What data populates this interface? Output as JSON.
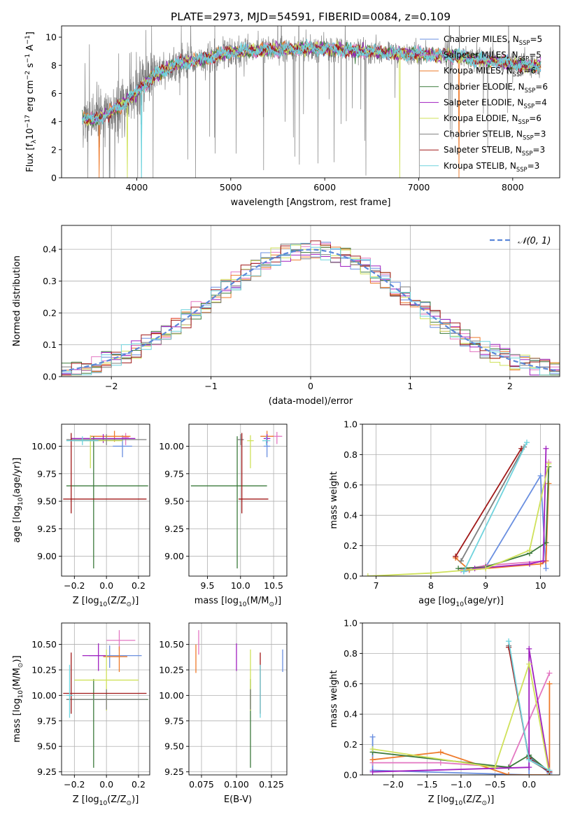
{
  "figure_title": "PLATE=2973, MJD=54591, FIBERID=0084, z=0.109",
  "colors": {
    "Chabrier MILES": "#6a8fe0",
    "Salpeter MILES": "#e377c2",
    "Kroupa MILES": "#ee7a2a",
    "Chabrier ELODIE": "#3c7a3c",
    "Salpeter ELODIE": "#a020c0",
    "Kroupa ELODIE": "#cfe15a",
    "Chabrier STELIB": "#7f7f7f",
    "Salpeter STELIB": "#a01818",
    "Kroupa STELIB": "#6fd3dd"
  },
  "chart_data": [
    {
      "id": "spectrum",
      "type": "line",
      "xlabel": "wavelength [Angstrom, rest frame]",
      "ylabel": "Flux [f$_\\lambda$10$^{-17}$ erg cm$^{-2}$ s$^{-1}$ A$^{-1}$]",
      "xlim": [
        3200,
        8500
      ],
      "ylim": [
        0,
        10.8
      ],
      "xticks": [
        4000,
        5000,
        6000,
        7000,
        8000
      ],
      "yticks": [
        0,
        2,
        4,
        6,
        8,
        10
      ],
      "legend_position": "right",
      "legend": [
        {
          "name": "Chabrier MILES",
          "n_ssp": "5"
        },
        {
          "name": "Salpeter MILES",
          "n_ssp": "5"
        },
        {
          "name": "Kroupa MILES",
          "n_ssp": "6"
        },
        {
          "name": "Chabrier ELODIE",
          "n_ssp": "6"
        },
        {
          "name": "Salpeter ELODIE",
          "n_ssp": "4"
        },
        {
          "name": "Kroupa ELODIE",
          "n_ssp": "6"
        },
        {
          "name": "Chabrier STELIB",
          "n_ssp": "3"
        },
        {
          "name": "Salpeter STELIB",
          "n_ssp": "3"
        },
        {
          "name": "Kroupa STELIB",
          "n_ssp": "3"
        }
      ],
      "continuum": {
        "x": [
          3420,
          3550,
          3700,
          3850,
          4000,
          4200,
          4400,
          4600,
          4800,
          5000,
          5200,
          5400,
          5600,
          5800,
          6000,
          6200,
          6400,
          6600,
          6800,
          7000,
          7200,
          7400,
          7600,
          7800,
          8000,
          8200,
          8300
        ],
        "y": [
          4.2,
          4.1,
          4.6,
          5.2,
          6.1,
          7.3,
          8.0,
          8.3,
          8.6,
          8.9,
          9.0,
          9.1,
          9.1,
          9.2,
          9.2,
          9.1,
          9.0,
          8.9,
          8.85,
          8.8,
          8.7,
          8.7,
          8.4,
          8.3,
          8.1,
          7.9,
          8.0
        ]
      },
      "model_drops": [
        {
          "model": "Kroupa MILES",
          "x": 3600
        },
        {
          "model": "Kroupa ELODIE",
          "x": 3900
        },
        {
          "model": "Kroupa STELIB",
          "x": 4050
        },
        {
          "model": "Kroupa ELODIE",
          "x": 6800
        },
        {
          "model": "Kroupa MILES",
          "x": 7430
        }
      ]
    },
    {
      "id": "residual-histogram",
      "type": "histogram",
      "xlabel": "(data-model)/error",
      "ylabel": "Normed distribution",
      "xlim": [
        -2.5,
        2.5
      ],
      "ylim": [
        0,
        0.475
      ],
      "xticks": [
        -2,
        -1,
        0,
        1,
        2
      ],
      "yticks": [
        0.0,
        0.1,
        0.2,
        0.3,
        0.4
      ],
      "grid": true,
      "legend": [
        "$\\mathcal{N}(0,1)$"
      ],
      "legend_position": "top-right",
      "bin_width": 0.1,
      "reference_curve": "normal(0,1)"
    },
    {
      "id": "age-vs-metallicity",
      "type": "errorbar",
      "xlabel": "Z [log$_{10}$(Z/Z$_\\odot$)]",
      "ylabel": "age  [log$_{10}$(age/yr)]",
      "xlim": [
        -0.28,
        0.27
      ],
      "ylim": [
        8.82,
        10.2
      ],
      "xticks": [
        -0.2,
        0.0,
        0.2
      ],
      "yticks": [
        9.0,
        9.25,
        9.5,
        9.75,
        10.0
      ],
      "grid": true,
      "points": [
        {
          "model": "Chabrier MILES",
          "x": 0.1,
          "y": 10.0,
          "xerr": [
            0.06,
            0.06
          ],
          "yerr": [
            0.1,
            0.1
          ]
        },
        {
          "model": "Salpeter MILES",
          "x": 0.12,
          "y": 10.08,
          "xerr": [
            0.02,
            0.02
          ],
          "yerr": [
            0.07,
            0.04
          ]
        },
        {
          "model": "Kroupa MILES",
          "x": 0.05,
          "y": 10.09,
          "xerr": [
            0.15,
            0.1
          ],
          "yerr": [
            0.05,
            0.05
          ]
        },
        {
          "model": "Chabrier ELODIE",
          "x": -0.08,
          "y": 9.64,
          "xerr": [
            0.17,
            0.34
          ],
          "yerr": [
            0.75,
            0.45
          ]
        },
        {
          "model": "Salpeter ELODIE",
          "x": -0.02,
          "y": 10.07,
          "xerr": [
            0.2,
            0.2
          ],
          "yerr": [
            0.04,
            0.04
          ]
        },
        {
          "model": "Kroupa ELODIE",
          "x": -0.1,
          "y": 10.05,
          "xerr": [
            0.1,
            0.2
          ],
          "yerr": [
            0.25,
            0.05
          ]
        },
        {
          "model": "Chabrier STELIB",
          "x": 0.0,
          "y": 10.06,
          "xerr": [
            0.25,
            0.25
          ],
          "yerr": [
            0.05,
            0.05
          ]
        },
        {
          "model": "Salpeter STELIB",
          "x": -0.22,
          "y": 9.52,
          "xerr": [
            0.05,
            0.47
          ],
          "yerr": [
            0.13,
            0.6
          ]
        },
        {
          "model": "Kroupa STELIB",
          "x": -0.15,
          "y": 10.05,
          "xerr": [
            0.1,
            0.1
          ],
          "yerr": [
            0.04,
            0.04
          ]
        }
      ]
    },
    {
      "id": "age-vs-mass",
      "type": "errorbar",
      "xlabel": "mass [log$_{10}$(M/M$_\\odot$)]",
      "ylabel": "",
      "xlim": [
        9.22,
        10.7
      ],
      "ylim": [
        8.82,
        10.2
      ],
      "xticks": [
        9.5,
        10.0,
        10.5
      ],
      "yticks": [
        9.0,
        9.25,
        9.5,
        9.75,
        10.0
      ],
      "grid": true,
      "points": [
        {
          "model": "Chabrier MILES",
          "x": 10.4,
          "y": 10.0,
          "xerr": [
            0.05,
            0.05
          ],
          "yerr": [
            0.1,
            0.1
          ]
        },
        {
          "model": "Salpeter MILES",
          "x": 10.55,
          "y": 10.09,
          "xerr": [
            0.08,
            0.08
          ],
          "yerr": [
            0.07,
            0.04
          ]
        },
        {
          "model": "Kroupa MILES",
          "x": 10.4,
          "y": 10.09,
          "xerr": [
            0.1,
            0.1
          ],
          "yerr": [
            0.05,
            0.05
          ]
        },
        {
          "model": "Chabrier ELODIE",
          "x": 9.95,
          "y": 9.64,
          "xerr": [
            0.7,
            0.45
          ],
          "yerr": [
            0.75,
            0.45
          ]
        },
        {
          "model": "Salpeter ELODIE",
          "x": 10.4,
          "y": 10.07,
          "xerr": [
            0.05,
            0.05
          ],
          "yerr": [
            0.04,
            0.04
          ]
        },
        {
          "model": "Kroupa ELODIE",
          "x": 10.15,
          "y": 10.05,
          "xerr": [
            0.05,
            0.05
          ],
          "yerr": [
            0.25,
            0.05
          ]
        },
        {
          "model": "Chabrier STELIB",
          "x": 10.0,
          "y": 10.06,
          "xerr": [
            0.05,
            0.05
          ],
          "yerr": [
            0.05,
            0.05
          ]
        },
        {
          "model": "Salpeter STELIB",
          "x": 10.02,
          "y": 9.52,
          "xerr": [
            0.05,
            0.4
          ],
          "yerr": [
            0.13,
            0.6
          ]
        },
        {
          "model": "Kroupa STELIB",
          "x": 10.39,
          "y": 10.05,
          "xerr": [
            0.06,
            0.06
          ],
          "yerr": [
            0.04,
            0.04
          ]
        }
      ]
    },
    {
      "id": "mass-weight-vs-age",
      "type": "line",
      "xlabel": "age  [log$_{10}$(age/yr)]",
      "ylabel": "mass weight",
      "xlim": [
        6.75,
        10.35
      ],
      "ylim": [
        0,
        1.0
      ],
      "xticks": [
        7,
        8,
        9,
        10
      ],
      "yticks": [
        0.0,
        0.2,
        0.4,
        0.6,
        0.8,
        1.0
      ],
      "grid": true,
      "series": [
        {
          "model": "Chabrier MILES",
          "x": [
            8.6,
            9.0,
            10.0,
            10.1
          ],
          "y": [
            0.03,
            0.06,
            0.66,
            0.05
          ]
        },
        {
          "model": "Salpeter MILES",
          "x": [
            8.55,
            9.0,
            10.1,
            10.15
          ],
          "y": [
            0.04,
            0.07,
            0.1,
            0.75
          ]
        },
        {
          "model": "Kroupa MILES",
          "x": [
            8.45,
            8.7,
            9.0,
            10.0,
            10.1,
            10.15
          ],
          "y": [
            0.12,
            0.04,
            0.05,
            0.08,
            0.1,
            0.61
          ]
        },
        {
          "model": "Chabrier ELODIE",
          "x": [
            8.5,
            9.0,
            9.8,
            10.1,
            10.15
          ],
          "y": [
            0.05,
            0.06,
            0.15,
            0.22,
            0.72
          ]
        },
        {
          "model": "Salpeter ELODIE",
          "x": [
            8.8,
            9.8,
            10.05,
            10.1
          ],
          "y": [
            0.05,
            0.08,
            0.1,
            0.84
          ]
        },
        {
          "model": "Kroupa ELODIE",
          "x": [
            6.85,
            8.0,
            9.0,
            9.8,
            10.15
          ],
          "y": [
            0.0,
            0.02,
            0.05,
            0.17,
            0.74
          ]
        },
        {
          "model": "Chabrier STELIB",
          "x": [
            8.55,
            9.7
          ],
          "y": [
            0.1,
            0.85
          ]
        },
        {
          "model": "Salpeter STELIB",
          "x": [
            8.45,
            9.65
          ],
          "y": [
            0.13,
            0.84
          ]
        },
        {
          "model": "Kroupa STELIB",
          "x": [
            8.6,
            9.75
          ],
          "y": [
            0.03,
            0.88
          ]
        }
      ]
    },
    {
      "id": "mass-vs-metallicity",
      "type": "errorbar",
      "xlabel": "Z [log$_{10}$(Z/Z$_\\odot$)]",
      "ylabel": "mass [log$_{10}$(M/M$_\\odot$)]",
      "xlim": [
        -0.28,
        0.27
      ],
      "ylim": [
        9.22,
        10.71
      ],
      "xticks": [
        -0.2,
        0.0,
        0.2
      ],
      "yticks": [
        9.25,
        9.5,
        9.75,
        10.0,
        10.25,
        10.5
      ],
      "grid": true,
      "points": [
        {
          "model": "Chabrier MILES",
          "x": 0.02,
          "y": 10.39,
          "xerr": [
            0.13,
            0.2
          ],
          "yerr": [
            0.12,
            0.1
          ]
        },
        {
          "model": "Salpeter MILES",
          "x": 0.08,
          "y": 10.54,
          "xerr": [
            0.08,
            0.1
          ],
          "yerr": [
            0.1,
            0.1
          ]
        },
        {
          "model": "Kroupa MILES",
          "x": 0.08,
          "y": 10.38,
          "xerr": [
            0.1,
            0.05
          ],
          "yerr": [
            0.15,
            0.1
          ]
        },
        {
          "model": "Chabrier ELODIE",
          "x": -0.08,
          "y": 9.96,
          "xerr": [
            0.17,
            0.34
          ],
          "yerr": [
            0.67,
            0.2
          ]
        },
        {
          "model": "Salpeter ELODIE",
          "x": -0.05,
          "y": 10.39,
          "xerr": [
            0.1,
            0.05
          ],
          "yerr": [
            0.15,
            0.12
          ]
        },
        {
          "model": "Kroupa ELODIE",
          "x": 0.0,
          "y": 10.15,
          "xerr": [
            0.2,
            0.2
          ],
          "yerr": [
            0.3,
            0.3
          ]
        },
        {
          "model": "Chabrier STELIB",
          "x": 0.0,
          "y": 9.96,
          "xerr": [
            0.25,
            0.25
          ],
          "yerr": [
            0.1,
            0.1
          ]
        },
        {
          "model": "Salpeter STELIB",
          "x": -0.22,
          "y": 10.02,
          "xerr": [
            0.05,
            0.47
          ],
          "yerr": [
            0.2,
            0.4
          ]
        },
        {
          "model": "Kroupa STELIB",
          "x": -0.23,
          "y": 10.0,
          "xerr": [
            0.02,
            0.02
          ],
          "yerr": [
            0.22,
            0.3
          ]
        }
      ]
    },
    {
      "id": "mass-vs-ebv",
      "type": "errorbar",
      "xlabel": "E(B-V)",
      "ylabel": "",
      "xlim": [
        0.066,
        0.136
      ],
      "ylim": [
        9.22,
        10.71
      ],
      "xticks": [
        0.075,
        0.1,
        0.125
      ],
      "yticks": [
        9.25,
        9.5,
        9.75,
        10.0,
        10.25,
        10.5
      ],
      "grid": true,
      "points": [
        {
          "model": "Chabrier MILES",
          "x": 0.133,
          "y": 10.33,
          "yerr": [
            0.1,
            0.12
          ]
        },
        {
          "model": "Salpeter MILES",
          "x": 0.073,
          "y": 10.52,
          "yerr": [
            0.12,
            0.12
          ]
        },
        {
          "model": "Kroupa MILES",
          "x": 0.071,
          "y": 10.36,
          "yerr": [
            0.14,
            0.14
          ]
        },
        {
          "model": "Chabrier ELODIE",
          "x": 0.11,
          "y": 9.96,
          "yerr": [
            0.67,
            0.2
          ]
        },
        {
          "model": "Salpeter ELODIE",
          "x": 0.1,
          "y": 10.39,
          "yerr": [
            0.15,
            0.12
          ]
        },
        {
          "model": "Kroupa ELODIE",
          "x": 0.11,
          "y": 10.15,
          "yerr": [
            0.3,
            0.3
          ]
        },
        {
          "model": "Chabrier STELIB",
          "x": 0.11,
          "y": 9.96,
          "yerr": [
            0.1,
            0.1
          ]
        },
        {
          "model": "Salpeter STELIB",
          "x": 0.117,
          "y": 10.02,
          "yerr": [
            0.2,
            0.4
          ]
        },
        {
          "model": "Kroupa STELIB",
          "x": 0.117,
          "y": 10.0,
          "yerr": [
            0.22,
            0.3
          ]
        }
      ]
    },
    {
      "id": "mass-weight-vs-metallicity",
      "type": "line",
      "xlabel": "Z [log$_{10}$(Z/Z$_\\odot$)]",
      "ylabel": "mass weight",
      "xlim": [
        -2.45,
        0.45
      ],
      "ylim": [
        0,
        1.0
      ],
      "xticks": [
        -2.0,
        -1.5,
        -1.0,
        -0.5,
        0.0
      ],
      "yticks": [
        0.0,
        0.2,
        0.4,
        0.6,
        0.8,
        1.0
      ],
      "grid": true,
      "series": [
        {
          "model": "Chabrier MILES",
          "x": [
            -2.3,
            -2.3,
            0.0,
            0.0,
            0.3
          ],
          "y": [
            0.25,
            0.03,
            0.0,
            0.12,
            0.01
          ]
        },
        {
          "model": "Salpeter MILES",
          "x": [
            -2.3,
            -1.3,
            -0.3,
            0.3
          ],
          "y": [
            0.08,
            0.08,
            0.05,
            0.67
          ]
        },
        {
          "model": "Kroupa MILES",
          "x": [
            -2.3,
            -1.3,
            -0.3,
            0.3,
            0.3
          ],
          "y": [
            0.1,
            0.15,
            0.0,
            0.0,
            0.6
          ]
        },
        {
          "model": "Chabrier ELODIE",
          "x": [
            -2.3,
            -0.3,
            0.0,
            0.3
          ],
          "y": [
            0.15,
            0.05,
            0.13,
            0.02
          ]
        },
        {
          "model": "Salpeter ELODIE",
          "x": [
            -2.3,
            0.0,
            0.0,
            0.3
          ],
          "y": [
            0.02,
            0.05,
            0.83,
            0.02
          ]
        },
        {
          "model": "Kroupa ELODIE",
          "x": [
            -2.3,
            -0.5,
            0.0,
            0.3
          ],
          "y": [
            0.17,
            0.05,
            0.73,
            0.0
          ]
        },
        {
          "model": "Chabrier STELIB",
          "x": [
            -0.3,
            0.0,
            0.3
          ],
          "y": [
            0.85,
            0.1,
            0.02
          ]
        },
        {
          "model": "Salpeter STELIB",
          "x": [
            -0.3,
            0.0,
            0.3
          ],
          "y": [
            0.84,
            0.11,
            0.02
          ]
        },
        {
          "model": "Kroupa STELIB",
          "x": [
            -0.3,
            0.0,
            0.3
          ],
          "y": [
            0.88,
            0.1,
            0.03
          ]
        }
      ]
    }
  ]
}
